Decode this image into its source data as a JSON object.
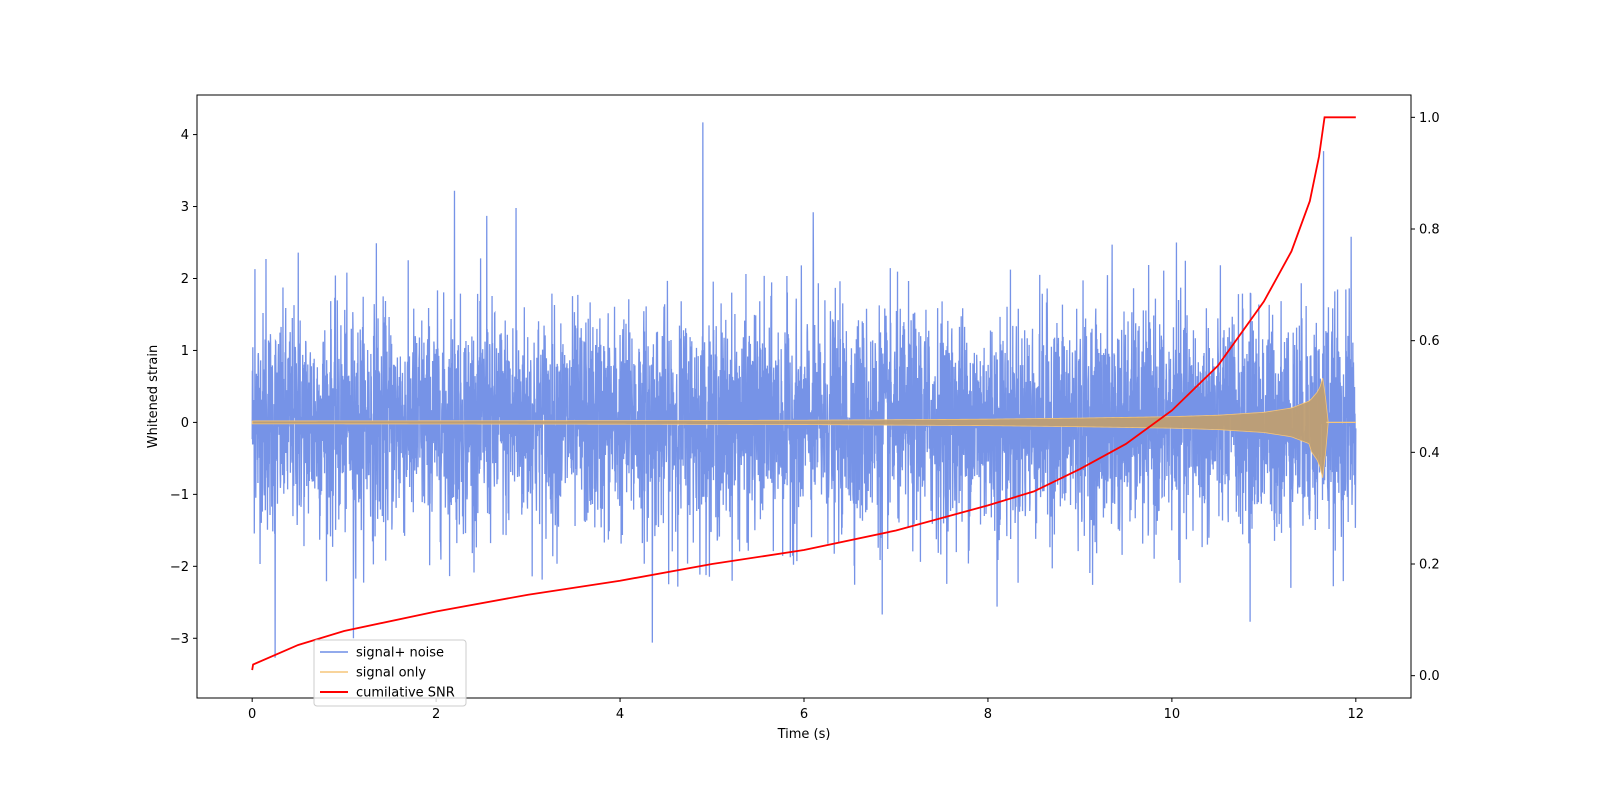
{
  "chart_data": {
    "type": "line",
    "title": "",
    "xlabel": "Time (s)",
    "ylabel": "Whitened strain",
    "y2label": "",
    "xlim": [
      -0.6,
      12.6
    ],
    "ylim": [
      -3.83,
      4.55
    ],
    "y2lim": [
      -0.04,
      1.04
    ],
    "xticks": [
      0,
      2,
      4,
      6,
      8,
      10,
      12
    ],
    "yticks": [
      -3,
      -2,
      -1,
      0,
      1,
      2,
      3,
      4
    ],
    "y2ticks": [
      0.0,
      0.2,
      0.4,
      0.6,
      0.8,
      1.0
    ],
    "xtick_labels": [
      "0",
      "2",
      "4",
      "6",
      "8",
      "10",
      "12"
    ],
    "ytick_labels": [
      "−3",
      "−2",
      "−1",
      "0",
      "1",
      "2",
      "3",
      "4"
    ],
    "y2tick_labels": [
      "0.0",
      "0.2",
      "0.4",
      "0.6",
      "0.8",
      "1.0"
    ],
    "grid": false,
    "legend_position": "bottom-left",
    "series": [
      {
        "name": "signal+ noise",
        "color": "#6f8de6",
        "axis": "left",
        "description_stats": {
          "x_start": 0,
          "x_end": 12,
          "std": 0.75,
          "peak_max": 4.17,
          "peak_min": -3.27
        },
        "peaks": [
          {
            "x": 0.03,
            "y": 2.13
          },
          {
            "x": 0.15,
            "y": 2.27
          },
          {
            "x": 0.25,
            "y": -3.27
          },
          {
            "x": 0.5,
            "y": 2.36
          },
          {
            "x": 1.1,
            "y": -3.0
          },
          {
            "x": 1.35,
            "y": 2.49
          },
          {
            "x": 2.2,
            "y": 3.22
          },
          {
            "x": 2.55,
            "y": 2.87
          },
          {
            "x": 2.87,
            "y": 2.98
          },
          {
            "x": 4.35,
            "y": -3.06
          },
          {
            "x": 4.9,
            "y": 4.17
          },
          {
            "x": 6.1,
            "y": 2.92
          },
          {
            "x": 6.85,
            "y": -2.67
          },
          {
            "x": 8.1,
            "y": -2.56
          },
          {
            "x": 9.35,
            "y": 2.47
          },
          {
            "x": 10.05,
            "y": 2.5
          },
          {
            "x": 10.85,
            "y": -2.77
          },
          {
            "x": 11.65,
            "y": 3.77
          },
          {
            "x": 11.95,
            "y": 2.58
          }
        ]
      },
      {
        "name": "signal only",
        "color": "#f5c57a",
        "axis": "left",
        "envelope": {
          "x": [
            0,
            2,
            4,
            6,
            8,
            9,
            10,
            10.5,
            11,
            11.3,
            11.5,
            11.6,
            11.66,
            11.68,
            12
          ],
          "amplitude": [
            0.02,
            0.022,
            0.025,
            0.03,
            0.045,
            0.06,
            0.08,
            0.1,
            0.14,
            0.2,
            0.3,
            0.45,
            0.7,
            0.0,
            0.0
          ]
        }
      },
      {
        "name": "cumilative SNR",
        "color": "#ff0000",
        "axis": "right",
        "x": [
          0,
          0.01,
          0.5,
          1,
          2,
          3,
          4,
          5,
          6,
          7,
          8,
          8.5,
          9,
          9.5,
          10,
          10.5,
          11,
          11.3,
          11.5,
          11.6,
          11.66,
          11.68,
          12
        ],
        "values": [
          0.01,
          0.02,
          0.055,
          0.08,
          0.115,
          0.145,
          0.17,
          0.2,
          0.225,
          0.26,
          0.305,
          0.33,
          0.37,
          0.415,
          0.475,
          0.555,
          0.67,
          0.76,
          0.85,
          0.93,
          1.0,
          1.0,
          1.0
        ]
      }
    ]
  }
}
